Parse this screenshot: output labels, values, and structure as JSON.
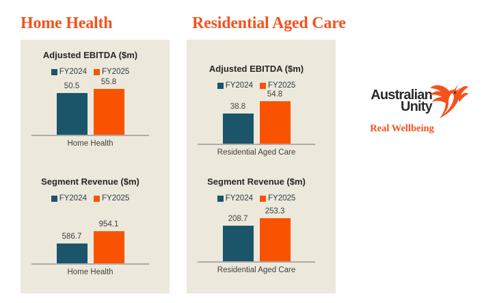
{
  "colors": {
    "heading_orange": "#F4521D",
    "card_background": "#ECE8DC",
    "series": [
      "#1A5569",
      "#F95301"
    ],
    "axis_line": "#ACACAA",
    "chart_title_text": "#262626",
    "label_text": "#404040",
    "logo_text": "#2A2A2A"
  },
  "sections": [
    {
      "title": "Home Health"
    },
    {
      "title": "Residential Aged Care"
    }
  ],
  "chart_data": [
    {
      "type": "bar",
      "section": "Home Health",
      "title": "Adjusted EBITDA ($m)",
      "categories": [
        "Home Health"
      ],
      "legend_position": "top",
      "grid": false,
      "baseline": 0,
      "series": [
        {
          "name": "FY2024",
          "values": [
            50.5
          ]
        },
        {
          "name": "FY2025",
          "values": [
            55.8
          ]
        }
      ]
    },
    {
      "type": "bar",
      "section": "Home Health",
      "title": "Segment Revenue ($m)",
      "categories": [
        "Home Health"
      ],
      "legend_position": "top",
      "grid": false,
      "baseline": 0,
      "series": [
        {
          "name": "FY2024",
          "values": [
            586.7
          ]
        },
        {
          "name": "FY2025",
          "values": [
            954.1
          ]
        }
      ]
    },
    {
      "type": "bar",
      "section": "Residential Aged Care",
      "title": "Adjusted EBITDA ($m)",
      "categories": [
        "Residential Aged Care"
      ],
      "legend_position": "top",
      "grid": false,
      "baseline": 0,
      "series": [
        {
          "name": "FY2024",
          "values": [
            38.8
          ]
        },
        {
          "name": "FY2025",
          "values": [
            54.8
          ]
        }
      ]
    },
    {
      "type": "bar",
      "section": "Residential Aged Care",
      "title": "Segment Revenue ($m)",
      "categories": [
        "Residential Aged Care"
      ],
      "legend_position": "top",
      "grid": false,
      "baseline": 0,
      "series": [
        {
          "name": "FY2024",
          "values": [
            208.7
          ]
        },
        {
          "name": "FY2025",
          "values": [
            253.3
          ]
        }
      ]
    }
  ],
  "logo": {
    "line1": "Australian",
    "line2": "Unity",
    "tagline": "Real Wellbeing",
    "bird": "hummingbird-icon"
  }
}
